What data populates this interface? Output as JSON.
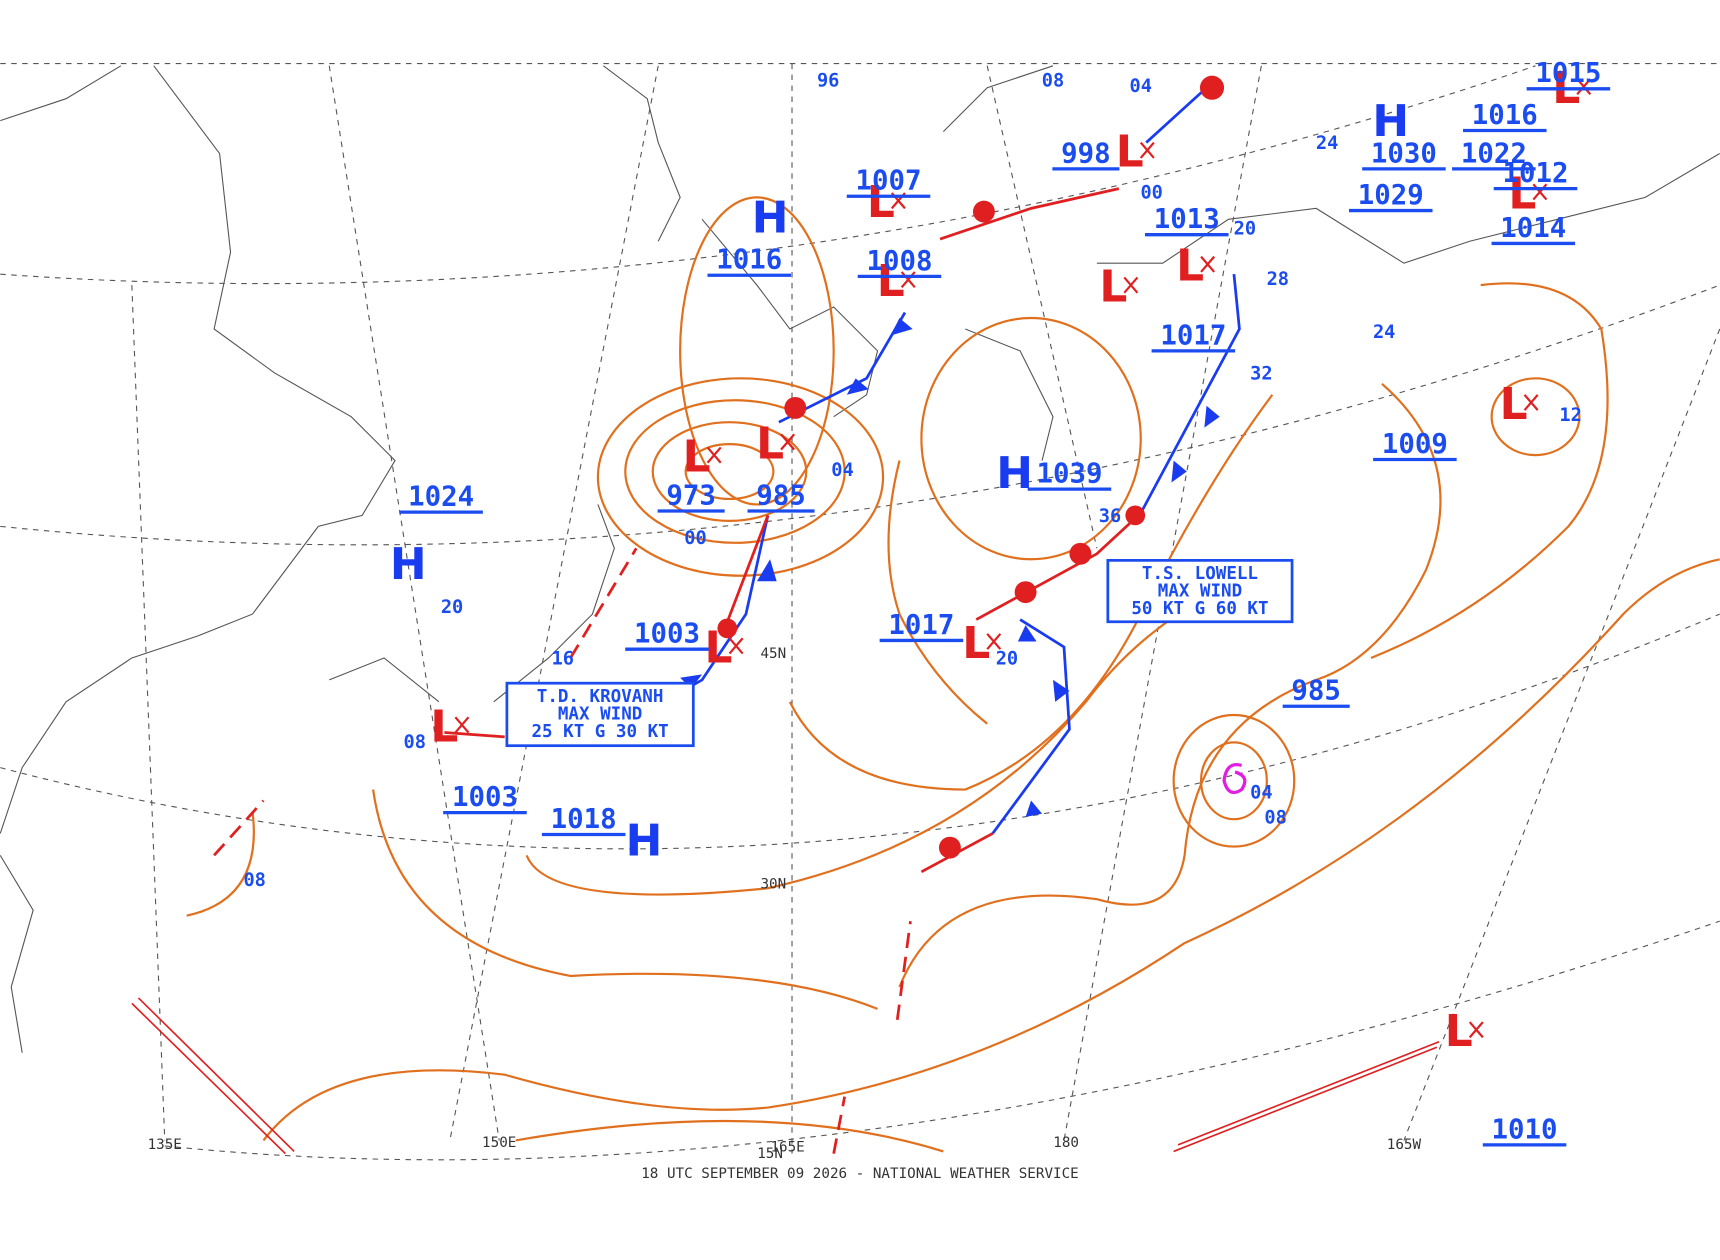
{
  "centers": [
    {
      "symbol": "H",
      "pressure": "1016"
    },
    {
      "symbol": "L",
      "pressure": "1007"
    },
    {
      "symbol": "L",
      "pressure": "1008"
    },
    {
      "symbol": "L",
      "pressure": "998"
    },
    {
      "symbol": "L",
      "pressure": "1017"
    },
    {
      "symbol": "L"
    },
    {
      "symbol": "H",
      "pressure": "1030"
    },
    {
      "symbol": "L",
      "pressure": "1016"
    },
    {
      "pressure": "1022"
    },
    {
      "symbol": "L",
      "pressure": "1012"
    },
    {
      "pressure": "1029"
    },
    {
      "pressure": "1014"
    },
    {
      "pressure": "1015"
    },
    {
      "symbol": "L",
      "pressure": "1009"
    },
    {
      "symbol": "H",
      "pressure": "1039"
    },
    {
      "symbol": "L",
      "pressure": "973"
    },
    {
      "symbol": "L",
      "pressure": "985"
    },
    {
      "symbol": "H",
      "pressure": "1024"
    },
    {
      "symbol": "L",
      "pressure": "1003"
    },
    {
      "symbol": "L",
      "pressure": "1017"
    },
    {
      "pressure": "985"
    },
    {
      "symbol": "L",
      "pressure": "1003"
    },
    {
      "symbol": "H",
      "pressure": "1018"
    },
    {
      "pressure": "1010"
    },
    {
      "symbol": "L"
    },
    {
      "pressure": "1013"
    }
  ],
  "isobar_labels": [
    "08",
    "20",
    "16",
    "04",
    "00",
    "20",
    "36",
    "32",
    "28",
    "24",
    "12",
    "04",
    "08",
    "08",
    "00",
    "20",
    "24",
    "08",
    "04",
    "96"
  ],
  "storms": [
    {
      "name": "T.D. KROVANH",
      "line2": "MAX WIND",
      "line3": "25 KT G 30 KT"
    },
    {
      "name": "T.S. LOWELL",
      "line2": "MAX WIND",
      "line3": "50 KT G 60 KT"
    }
  ],
  "grid_labels": [
    "135E",
    "150E",
    "165E",
    "180",
    "165W",
    "45N",
    "30N",
    "15N"
  ],
  "footer": "18 UTC SEPTEMBER 09 2026 - NATIONAL WEATHER SERVICE"
}
